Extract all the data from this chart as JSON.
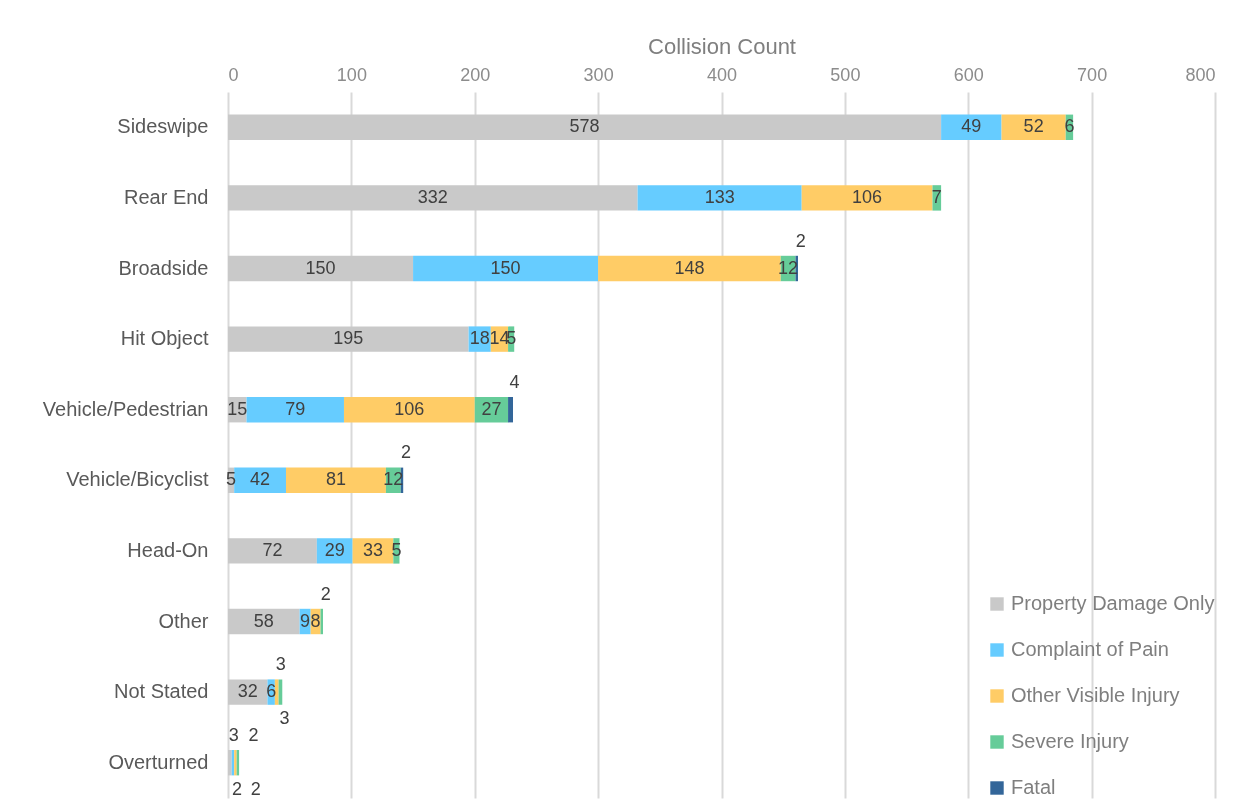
{
  "chart_data": {
    "type": "bar",
    "orientation": "horizontal",
    "stacked": true,
    "xlabel": "Collision Count",
    "categories": [
      "Sideswipe",
      "Rear End",
      "Broadside",
      "Hit Object",
      "Vehicle/Pedestrian",
      "Vehicle/Bicyclist",
      "Head-On",
      "Other",
      "Not Stated",
      "Overturned"
    ],
    "series": [
      {
        "name": "Property Damage Only",
        "color": "#c9c9c9",
        "values": [
          578,
          332,
          150,
          195,
          15,
          5,
          72,
          58,
          32,
          3
        ]
      },
      {
        "name": "Complaint of Pain",
        "color": "#66ccff",
        "values": [
          49,
          133,
          150,
          18,
          79,
          42,
          29,
          9,
          6,
          2
        ]
      },
      {
        "name": "Other Visible Injury",
        "color": "#ffcc66",
        "values": [
          52,
          106,
          148,
          14,
          106,
          81,
          33,
          8,
          3,
          2
        ]
      },
      {
        "name": "Severe Injury",
        "color": "#66cc99",
        "values": [
          6,
          7,
          12,
          5,
          27,
          12,
          5,
          2,
          3,
          2
        ]
      },
      {
        "name": "Fatal",
        "color": "#336699",
        "values": [
          null,
          null,
          2,
          null,
          4,
          2,
          null,
          null,
          null,
          null
        ]
      }
    ],
    "xlim": [
      0,
      800
    ],
    "xticks": [
      0,
      100,
      200,
      300,
      400,
      500,
      600,
      700,
      800
    ],
    "grid": "x",
    "legend": "bottom right",
    "data_labels": true
  }
}
